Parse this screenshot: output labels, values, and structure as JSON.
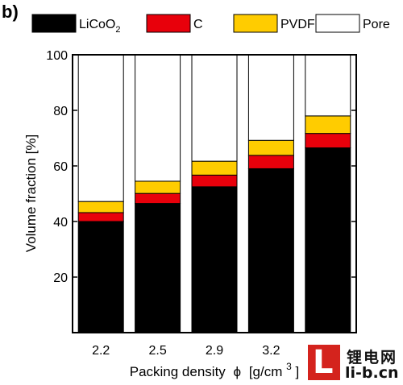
{
  "panel_label": "b)",
  "watermark": {
    "cn": "锂电网",
    "url": "li-b.cn",
    "logo_letter": "L"
  },
  "chart_data": {
    "type": "bar",
    "stacked": true,
    "categories": [
      "2.2",
      "2.5",
      "2.9",
      "3.2",
      "3.6"
    ],
    "series": [
      {
        "name": "LiCoO",
        "name_sub": "2",
        "color": "#000000",
        "values": [
          40,
          46.5,
          52.5,
          59,
          66.5
        ]
      },
      {
        "name": "C",
        "color": "#e8000b",
        "values": [
          3.2,
          3.6,
          4.2,
          4.8,
          5.2
        ]
      },
      {
        "name": "PVDF",
        "color": "#ffcc00",
        "values": [
          4.0,
          4.4,
          5.0,
          5.4,
          6.3
        ]
      },
      {
        "name": "Pore",
        "color": "#ffffff",
        "values": [
          52.8,
          45.5,
          38.3,
          30.8,
          22.0
        ]
      }
    ],
    "xlabel": "Packing density",
    "xlabel_symbol": "ϕ",
    "xlabel_unit": "[g/cm",
    "xlabel_sup": "3",
    "xlabel_unit_end": "]",
    "ylabel": "Volume fraction [%]",
    "ylim": [
      0,
      100
    ],
    "yticks": [
      20,
      40,
      60,
      80,
      100
    ],
    "grid": false,
    "legend": "top"
  }
}
